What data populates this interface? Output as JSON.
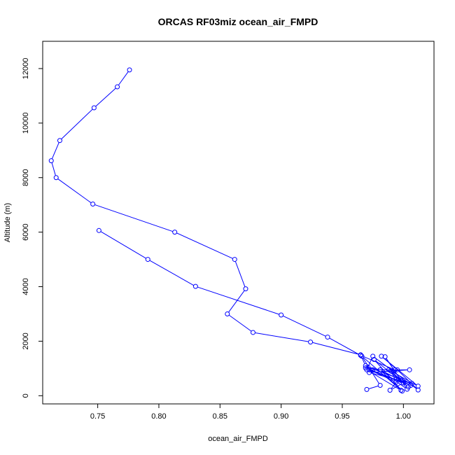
{
  "chart_data": {
    "type": "line",
    "title": "ORCAS RF03miz ocean_air_FMPD",
    "xlabel": "ocean_air_FMPD",
    "ylabel": "Altitude (m)",
    "xlim": [
      0.705,
      1.025
    ],
    "ylim": [
      -300,
      13000
    ],
    "x_ticks": [
      0.75,
      0.8,
      0.85,
      0.9,
      0.95,
      1.0
    ],
    "x_tick_labels": [
      "0.75",
      "0.80",
      "0.85",
      "0.90",
      "0.95",
      "1.00"
    ],
    "y_ticks": [
      0,
      2000,
      4000,
      6000,
      8000,
      10000,
      12000
    ],
    "y_tick_labels": [
      "0",
      "2000",
      "4000",
      "6000",
      "8000",
      "10000",
      "12000"
    ],
    "grid": false,
    "series": [
      {
        "color": "#0000ff",
        "marker": "open-circle",
        "points": [
          [
            0.776,
            11950
          ],
          [
            0.766,
            11330
          ],
          [
            0.747,
            10560
          ],
          [
            0.719,
            9360
          ],
          [
            0.712,
            8620
          ],
          [
            0.716,
            8000
          ],
          [
            0.746,
            7030
          ],
          [
            0.813,
            6000
          ],
          [
            0.862,
            5000
          ],
          [
            0.871,
            3920
          ],
          [
            0.856,
            3000
          ],
          [
            0.877,
            2320
          ],
          [
            0.924,
            1970
          ],
          [
            0.965,
            1500
          ],
          [
            0.969,
            1100
          ],
          [
            0.975,
            950
          ],
          [
            1.005,
            950
          ],
          [
            0.972,
            850
          ],
          [
            1.007,
            450
          ],
          [
            0.971,
            1050
          ],
          [
            0.981,
            950
          ],
          [
            1.003,
            240
          ],
          [
            0.985,
            1430
          ],
          [
            0.998,
            560
          ],
          [
            0.988,
            950
          ],
          [
            1.012,
            350
          ],
          [
            0.982,
            1450
          ],
          [
            0.995,
            950
          ],
          [
            1.012,
            210
          ],
          [
            0.975,
            1450
          ],
          [
            0.97,
            950
          ],
          [
            0.998,
            200
          ],
          [
            0.981,
            950
          ],
          [
            1.006,
            380
          ],
          [
            0.969,
            1020
          ],
          [
            0.994,
            500
          ],
          [
            0.99,
            900
          ],
          [
            1.004,
            320
          ],
          [
            0.976,
            1330
          ],
          [
            0.999,
            170
          ],
          [
            0.966,
            1450
          ],
          [
            0.981,
            380
          ],
          [
            0.97,
            230
          ]
        ]
      },
      {
        "color": "#0000ff",
        "marker": "open-circle",
        "points": [
          [
            0.751,
            6060
          ],
          [
            0.791,
            5000
          ],
          [
            0.83,
            4010
          ],
          [
            0.9,
            2960
          ],
          [
            0.938,
            2150
          ],
          [
            0.965,
            1480
          ],
          [
            0.993,
            950
          ],
          [
            0.972,
            950
          ],
          [
            1.0,
            470
          ],
          [
            0.989,
            200
          ],
          [
            0.996,
            600
          ]
        ]
      }
    ]
  }
}
